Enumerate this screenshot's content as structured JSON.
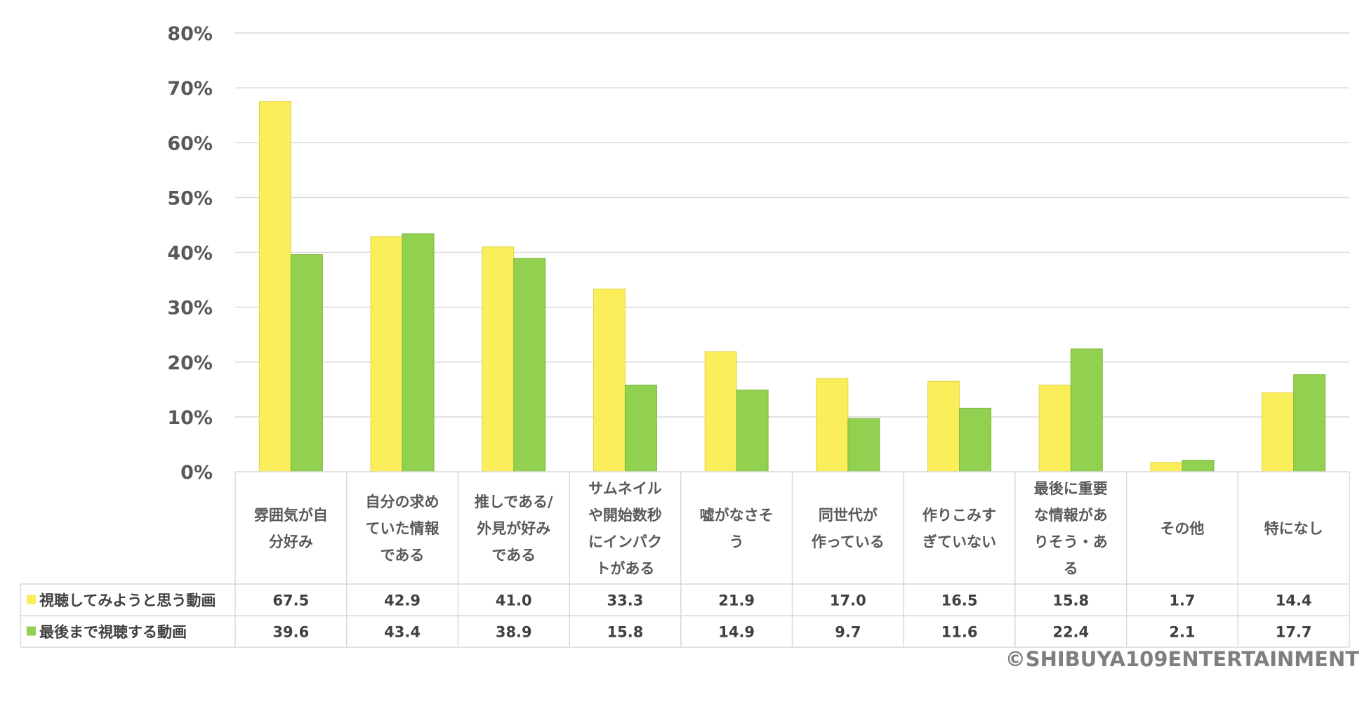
{
  "chart_data": {
    "type": "bar",
    "yticks": [
      "0%",
      "10%",
      "20%",
      "30%",
      "40%",
      "50%",
      "60%",
      "70%",
      "80%"
    ],
    "ylim": [
      0,
      80
    ],
    "categories": [
      [
        "雰囲気が自",
        "分好み"
      ],
      [
        "自分の求め",
        "ていた情報",
        "である"
      ],
      [
        "推しである/",
        "外見が好み",
        "である"
      ],
      [
        "サムネイル",
        "や開始数秒",
        "にインパク",
        "トがある"
      ],
      [
        "嘘がなさそ",
        "う"
      ],
      [
        "同世代が",
        "作っている"
      ],
      [
        "作りこみす",
        "ぎていない"
      ],
      [
        "最後に重要",
        "な情報があ",
        "りそう・あ",
        "る"
      ],
      [
        "その他"
      ],
      [
        "特になし"
      ]
    ],
    "series": [
      {
        "name": "視聴してみようと思う動画",
        "color": "#FAEE5A",
        "values": [
          67.5,
          42.9,
          41.0,
          33.3,
          21.9,
          17.0,
          16.5,
          15.8,
          1.7,
          14.4
        ],
        "labels": [
          "67.5",
          "42.9",
          "41.0",
          "33.3",
          "21.9",
          "17.0",
          "16.5",
          "15.8",
          "1.7",
          "14.4"
        ]
      },
      {
        "name": "最後まで視聴する動画",
        "color": "#92D050",
        "values": [
          39.6,
          43.4,
          38.9,
          15.8,
          14.9,
          9.7,
          11.6,
          22.4,
          2.1,
          17.7
        ],
        "labels": [
          "39.6",
          "43.4",
          "38.9",
          "15.8",
          "14.9",
          "9.7",
          "11.6",
          "22.4",
          "2.1",
          "17.7"
        ]
      }
    ],
    "grid": true,
    "legend": "data-table"
  },
  "copyright": "©SHIBUYA109ENTERTAINMENT"
}
